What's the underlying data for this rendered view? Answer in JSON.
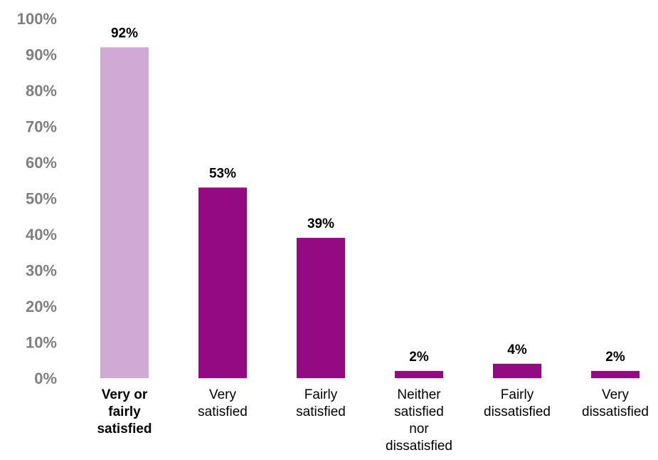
{
  "chart_data": {
    "type": "bar",
    "categories": [
      "Very or fairly satisfied",
      "Very satisfied",
      "Fairly satisfied",
      "Neither satisfied nor dissatisfied",
      "Fairly dissatisfied",
      "Very dissatisfied"
    ],
    "category_lines": [
      [
        "Very or",
        "fairly",
        "satisfied"
      ],
      [
        "Very",
        "satisfied"
      ],
      [
        "Fairly",
        "satisfied"
      ],
      [
        "Neither",
        "satisfied",
        "nor",
        "dissatisfied"
      ],
      [
        "Fairly",
        "dissatisfied"
      ],
      [
        "Very",
        "dissatisfied"
      ]
    ],
    "values": [
      92,
      53,
      39,
      2,
      4,
      2
    ],
    "value_labels": [
      "92%",
      "53%",
      "39%",
      "2%",
      "4%",
      "2%"
    ],
    "bar_colors": [
      "#d0a9d4",
      "#930a82",
      "#930a82",
      "#930a82",
      "#930a82",
      "#930a82"
    ],
    "bold_categories": [
      true,
      false,
      false,
      false,
      false,
      false
    ],
    "ylim": [
      0,
      100
    ],
    "yticks": [
      "0%",
      "10%",
      "20%",
      "30%",
      "40%",
      "50%",
      "60%",
      "70%",
      "80%",
      "90%",
      "100%"
    ],
    "grid": false,
    "legend": "none",
    "title": "",
    "xlabel": "",
    "ylabel": ""
  }
}
